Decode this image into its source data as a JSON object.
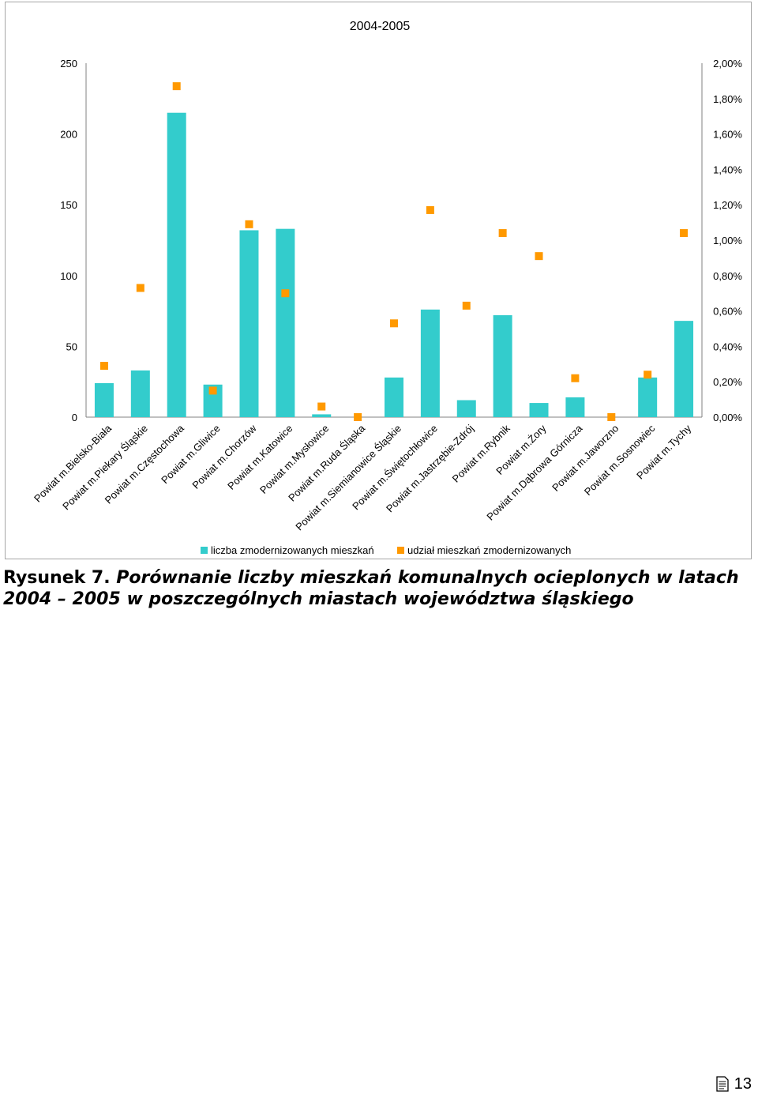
{
  "chart_data": {
    "type": "bar",
    "title": "2004-2005",
    "categories": [
      "Powiat m.Bielsko-Biała",
      "Powiat m.Piekary Śląskie",
      "Powiat m.Częstochowa",
      "Powiat m.Gliwice",
      "Powiat m.Chorzów",
      "Powiat m.Katowice",
      "Powiat m.Mysłowice",
      "Powiat m.Ruda Śląska",
      "Powiat m.Siemianowice Śląskie",
      "Powiat m.Świętochłowice",
      "Powiat m.Jastrzębie-Zdrój",
      "Powiat m.Rybnik",
      "Powiat m.Żory",
      "Powiat m.Dąbrowa Górnicza",
      "Powiat m.Jaworzno",
      "Powiat m.Sosnowiec",
      "Powiat m.Tychy"
    ],
    "series": [
      {
        "name": "liczba zmodernizowanych mieszkań",
        "kind": "bar",
        "axis": "left",
        "color": "#33cccc",
        "values": [
          24,
          33,
          215,
          23,
          132,
          133,
          2,
          0,
          28,
          76,
          12,
          72,
          10,
          14,
          0,
          28,
          68
        ]
      },
      {
        "name": "udział mieszkań zmodernizowanych",
        "kind": "marker",
        "axis": "right",
        "color": "#ff9900",
        "values": [
          0.0029,
          0.0073,
          0.0187,
          0.0015,
          0.0109,
          0.007,
          0.0006,
          0.0,
          0.0053,
          0.0117,
          0.0063,
          0.0104,
          0.0091,
          0.0022,
          0.0,
          0.0024,
          0.0104
        ]
      }
    ],
    "ylim": [
      0,
      250
    ],
    "y_ticks": [
      "0",
      "50",
      "100",
      "150",
      "200",
      "250"
    ],
    "y2lim": [
      0,
      0.02
    ],
    "y2_ticks": [
      "0,00%",
      "0,20%",
      "0,40%",
      "0,60%",
      "0,80%",
      "1,00%",
      "1,20%",
      "1,40%",
      "1,60%",
      "1,80%",
      "2,00%"
    ],
    "xlabel": "",
    "ylabel": "",
    "grid": false,
    "legend": "bottom"
  },
  "caption": {
    "lead": "Rysunek 7. ",
    "text": "Porównanie liczby mieszkań komunalnych ocieplonych w latach 2004 – 2005 w poszczególnych miastach województwa śląskiego"
  },
  "footer": {
    "page_number": "13",
    "icon": "notepad-icon"
  }
}
